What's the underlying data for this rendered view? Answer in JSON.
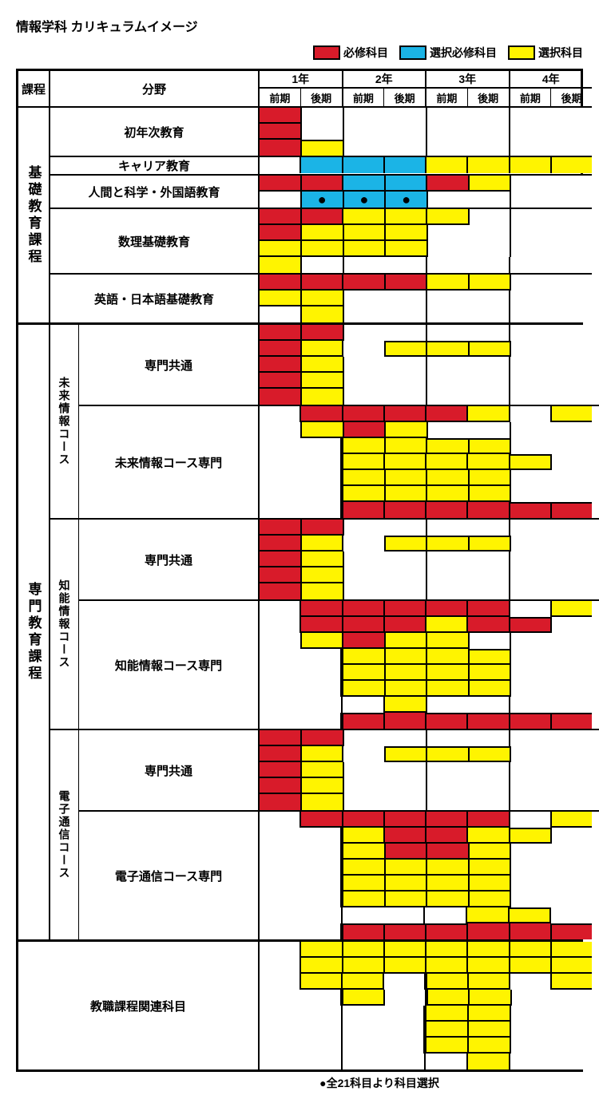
{
  "title": "情報学科 カリキュラムイメージ",
  "footnote": "●全21科目より科目選択",
  "colors": {
    "required": "#d81b2a",
    "elective_required": "#1bb4e6",
    "elective": "#fff400",
    "blank": "#ffffff",
    "border": "#000000"
  },
  "legend": [
    {
      "swatch": "required",
      "label": "必修科目"
    },
    {
      "swatch": "elective_required",
      "label": "選択必修科目"
    },
    {
      "swatch": "elective",
      "label": "選択科目"
    }
  ],
  "headers": {
    "program": "課程",
    "field": "分野",
    "years": [
      "1年",
      "2年",
      "3年",
      "4年"
    ],
    "semesters": [
      "前期",
      "後期"
    ]
  },
  "programs": [
    {
      "name": "基礎教育課程",
      "fields": [
        {
          "name": "初年次教育",
          "course": null,
          "grid": [
            [
              "r",
              "w",
              "w",
              "w",
              "w",
              "w",
              "w",
              "w"
            ],
            [
              "r",
              "w",
              "w",
              "w",
              "w",
              "w",
              "w",
              "w"
            ],
            [
              "r",
              "y",
              "w",
              "w",
              "w",
              "w",
              "w",
              "w"
            ]
          ]
        },
        {
          "name": "キャリア教育",
          "course": null,
          "grid": [
            [
              "w",
              "b",
              "b",
              "b",
              "y",
              "y",
              "y",
              "y"
            ]
          ]
        },
        {
          "name": "人間と科学・外国語教育",
          "course": null,
          "grid": [
            [
              "r",
              "r",
              "b",
              "b",
              "r",
              "y",
              "w",
              "w"
            ],
            [
              "w",
              "bdot",
              "bdot",
              "bdot",
              "w",
              "w",
              "w",
              "w"
            ]
          ]
        },
        {
          "name": "数理基礎教育",
          "course": null,
          "grid": [
            [
              "r",
              "r",
              "y",
              "y",
              "y",
              "w",
              "w",
              "w"
            ],
            [
              "r",
              "y",
              "y",
              "y",
              "w",
              "w",
              "w",
              "w"
            ],
            [
              "y",
              "y",
              "y",
              "y",
              "w",
              "w",
              "w",
              "w"
            ],
            [
              "y",
              "w",
              "w",
              "w",
              "w",
              "w",
              "w",
              "w"
            ]
          ]
        },
        {
          "name": "英語・日本語基礎教育",
          "course": null,
          "grid": [
            [
              "r",
              "r",
              "r",
              "r",
              "y",
              "y",
              "w",
              "w"
            ],
            [
              "y",
              "y",
              "w",
              "w",
              "w",
              "w",
              "w",
              "w"
            ],
            [
              "w",
              "y",
              "w",
              "w",
              "w",
              "w",
              "w",
              "w"
            ]
          ]
        }
      ]
    },
    {
      "name": "専門教育課程",
      "courses": [
        {
          "course": "未来情報コース",
          "fields": [
            {
              "name": "専門共通",
              "grid": [
                [
                  "r",
                  "r",
                  "w",
                  "w",
                  "w",
                  "w",
                  "w",
                  "w"
                ],
                [
                  "r",
                  "y",
                  "w",
                  "y",
                  "y",
                  "y",
                  "w",
                  "w"
                ],
                [
                  "r",
                  "y",
                  "w",
                  "w",
                  "w",
                  "w",
                  "w",
                  "w"
                ],
                [
                  "r",
                  "y",
                  "w",
                  "w",
                  "w",
                  "w",
                  "w",
                  "w"
                ],
                [
                  "r",
                  "y",
                  "w",
                  "w",
                  "w",
                  "w",
                  "w",
                  "w"
                ]
              ]
            },
            {
              "name": "未来情報コース専門",
              "grid": [
                [
                  "w",
                  "r",
                  "r",
                  "r",
                  "r",
                  "y",
                  "w",
                  "y"
                ],
                [
                  "w",
                  "y",
                  "r",
                  "y",
                  "w",
                  "w",
                  "w",
                  "w"
                ],
                [
                  "w",
                  "w",
                  "y",
                  "y",
                  "y",
                  "y",
                  "w",
                  "w"
                ],
                [
                  "w",
                  "w",
                  "y",
                  "y",
                  "y",
                  "y",
                  "y",
                  "w"
                ],
                [
                  "w",
                  "w",
                  "y",
                  "y",
                  "y",
                  "y",
                  "w",
                  "w"
                ],
                [
                  "w",
                  "w",
                  "y",
                  "y",
                  "y",
                  "y",
                  "w",
                  "w"
                ],
                [
                  "w",
                  "w",
                  "r",
                  "r",
                  "r",
                  "r",
                  "r",
                  "r"
                ]
              ]
            }
          ]
        },
        {
          "course": "知能情報コース",
          "fields": [
            {
              "name": "専門共通",
              "grid": [
                [
                  "r",
                  "r",
                  "w",
                  "w",
                  "w",
                  "w",
                  "w",
                  "w"
                ],
                [
                  "r",
                  "y",
                  "w",
                  "y",
                  "y",
                  "y",
                  "w",
                  "w"
                ],
                [
                  "r",
                  "y",
                  "w",
                  "w",
                  "w",
                  "w",
                  "w",
                  "w"
                ],
                [
                  "r",
                  "y",
                  "w",
                  "w",
                  "w",
                  "w",
                  "w",
                  "w"
                ],
                [
                  "r",
                  "y",
                  "w",
                  "w",
                  "w",
                  "w",
                  "w",
                  "w"
                ]
              ]
            },
            {
              "name": "知能情報コース専門",
              "grid": [
                [
                  "w",
                  "r",
                  "r",
                  "r",
                  "r",
                  "r",
                  "w",
                  "y"
                ],
                [
                  "w",
                  "r",
                  "r",
                  "r",
                  "y",
                  "r",
                  "r",
                  "w"
                ],
                [
                  "w",
                  "y",
                  "r",
                  "y",
                  "y",
                  "w",
                  "w",
                  "w"
                ],
                [
                  "w",
                  "w",
                  "y",
                  "y",
                  "y",
                  "y",
                  "w",
                  "w"
                ],
                [
                  "w",
                  "w",
                  "y",
                  "y",
                  "y",
                  "y",
                  "w",
                  "w"
                ],
                [
                  "w",
                  "w",
                  "y",
                  "y",
                  "y",
                  "y",
                  "w",
                  "w"
                ],
                [
                  "w",
                  "w",
                  "w",
                  "y",
                  "w",
                  "w",
                  "w",
                  "w"
                ],
                [
                  "w",
                  "w",
                  "r",
                  "r",
                  "r",
                  "r",
                  "r",
                  "r"
                ]
              ]
            }
          ]
        },
        {
          "course": "電子通信コース",
          "fields": [
            {
              "name": "専門共通",
              "grid": [
                [
                  "r",
                  "r",
                  "w",
                  "w",
                  "w",
                  "w",
                  "w",
                  "w"
                ],
                [
                  "r",
                  "y",
                  "w",
                  "y",
                  "y",
                  "y",
                  "w",
                  "w"
                ],
                [
                  "r",
                  "y",
                  "w",
                  "w",
                  "w",
                  "w",
                  "w",
                  "w"
                ],
                [
                  "r",
                  "y",
                  "w",
                  "w",
                  "w",
                  "w",
                  "w",
                  "w"
                ],
                [
                  "r",
                  "y",
                  "w",
                  "w",
                  "w",
                  "w",
                  "w",
                  "w"
                ]
              ]
            },
            {
              "name": "電子通信コース専門",
              "grid": [
                [
                  "w",
                  "r",
                  "r",
                  "r",
                  "r",
                  "r",
                  "w",
                  "y"
                ],
                [
                  "w",
                  "w",
                  "y",
                  "r",
                  "r",
                  "y",
                  "y",
                  "w"
                ],
                [
                  "w",
                  "w",
                  "y",
                  "r",
                  "r",
                  "y",
                  "w",
                  "w"
                ],
                [
                  "w",
                  "w",
                  "y",
                  "y",
                  "y",
                  "y",
                  "w",
                  "w"
                ],
                [
                  "w",
                  "w",
                  "y",
                  "y",
                  "y",
                  "y",
                  "w",
                  "w"
                ],
                [
                  "w",
                  "w",
                  "y",
                  "y",
                  "y",
                  "y",
                  "w",
                  "w"
                ],
                [
                  "w",
                  "w",
                  "w",
                  "w",
                  "w",
                  "y",
                  "y",
                  "w"
                ],
                [
                  "w",
                  "w",
                  "r",
                  "r",
                  "r",
                  "r",
                  "r",
                  "r"
                ]
              ]
            }
          ]
        }
      ]
    },
    {
      "name": null,
      "fields": [
        {
          "name": "教職課程関連科目",
          "course": null,
          "fullLabel": true,
          "grid": [
            [
              "w",
              "y",
              "y",
              "y",
              "y",
              "y",
              "y",
              "y"
            ],
            [
              "w",
              "y",
              "y",
              "y",
              "y",
              "y",
              "y",
              "y"
            ],
            [
              "w",
              "y",
              "y",
              "w",
              "y",
              "y",
              "w",
              "y"
            ],
            [
              "w",
              "w",
              "y",
              "w",
              "y",
              "y",
              "w",
              "w"
            ],
            [
              "w",
              "w",
              "w",
              "w",
              "y",
              "y",
              "w",
              "w"
            ],
            [
              "w",
              "w",
              "w",
              "w",
              "y",
              "y",
              "w",
              "w"
            ],
            [
              "w",
              "w",
              "w",
              "w",
              "y",
              "y",
              "w",
              "w"
            ],
            [
              "w",
              "w",
              "w",
              "w",
              "w",
              "y",
              "w",
              "w"
            ]
          ]
        }
      ]
    }
  ]
}
